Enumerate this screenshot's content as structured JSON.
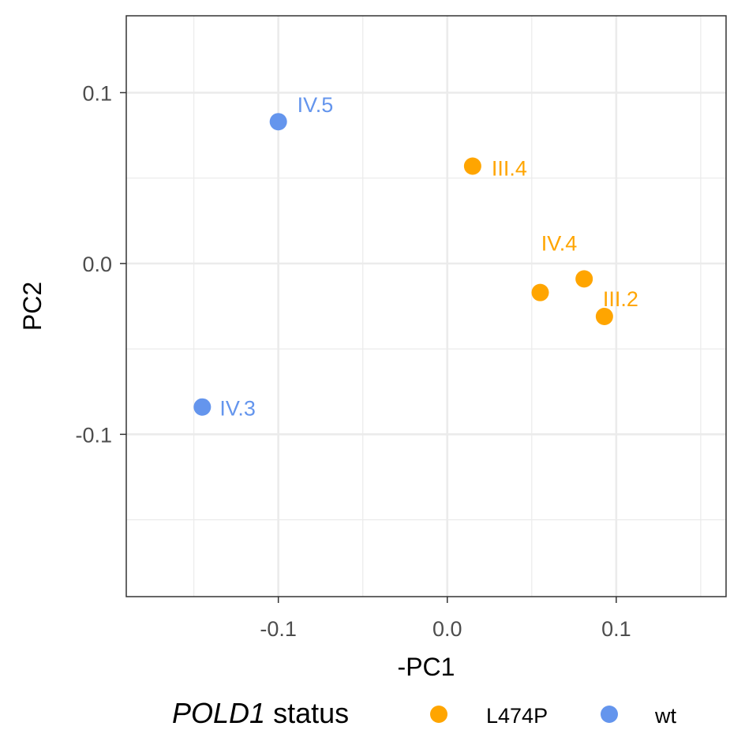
{
  "chart_data": {
    "type": "scatter",
    "xlabel": "-PC1",
    "ylabel": "PC2",
    "xlim": [
      -0.19,
      0.165
    ],
    "ylim": [
      -0.195,
      0.145
    ],
    "x_ticks": [
      {
        "value": -0.1,
        "label": "-0.1"
      },
      {
        "value": 0.0,
        "label": "0.0"
      },
      {
        "value": 0.1,
        "label": "0.1"
      }
    ],
    "y_ticks": [
      {
        "value": -0.1,
        "label": "-0.1"
      },
      {
        "value": 0.0,
        "label": "0.0"
      },
      {
        "value": 0.1,
        "label": "0.1"
      }
    ],
    "x_minor_grid": [
      -0.15,
      -0.05,
      0.05,
      0.15
    ],
    "y_minor_grid": [
      -0.15,
      -0.05,
      0.05
    ],
    "grid": true,
    "legend": {
      "title_italic": "POLD1",
      "title_rest": " status",
      "placement": "bottom",
      "entries": [
        {
          "label": "L474P",
          "color": "#FFA500"
        },
        {
          "label": "wt",
          "color": "#6495ED"
        }
      ]
    },
    "points": [
      {
        "label": "IV.5",
        "x": -0.1,
        "y": 0.083,
        "group": "wt",
        "color": "#6495ED"
      },
      {
        "label": "IV.3",
        "x": -0.145,
        "y": -0.084,
        "group": "wt",
        "color": "#6495ED"
      },
      {
        "label": "III.4",
        "x": 0.015,
        "y": 0.057,
        "group": "L474P",
        "color": "#FFA500"
      },
      {
        "label": "IV.4",
        "x": 0.055,
        "y": -0.017,
        "group": "L474P",
        "color": "#FFA500"
      },
      {
        "label": "",
        "x": 0.081,
        "y": -0.009,
        "group": "L474P",
        "color": "#FFA500"
      },
      {
        "label": "III.2",
        "x": 0.093,
        "y": -0.031,
        "group": "L474P",
        "color": "#FFA500"
      }
    ]
  }
}
